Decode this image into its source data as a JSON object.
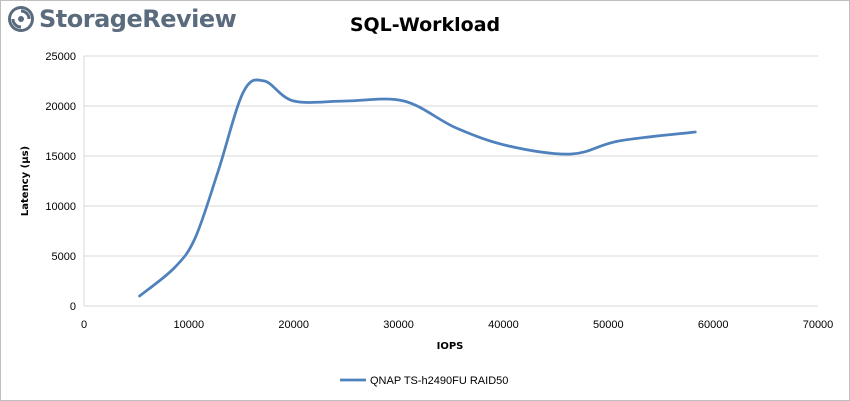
{
  "brand": {
    "name": "StorageReview",
    "logo_icon": "storagereview-logo-icon",
    "logo_color": "#5b6b7e"
  },
  "chart_data": {
    "type": "line",
    "title": "SQL-Workload",
    "xlabel": "IOPS",
    "ylabel": "Latency (µs)",
    "xlim": [
      0,
      70000
    ],
    "ylim": [
      0,
      25000
    ],
    "xticks": [
      0,
      10000,
      20000,
      30000,
      40000,
      50000,
      60000,
      70000
    ],
    "yticks": [
      0,
      5000,
      10000,
      15000,
      20000,
      25000
    ],
    "grid": true,
    "legend_position": "bottom",
    "series": [
      {
        "name": "QNAP TS-h2490FU RAID50",
        "color": "#4f81bd",
        "x": [
          5300,
          8600,
          10600,
          12800,
          15200,
          17200,
          20000,
          25000,
          30500,
          35500,
          40500,
          46500,
          51000,
          58300
        ],
        "y": [
          1000,
          3800,
          6800,
          13500,
          21400,
          22500,
          20500,
          20500,
          20500,
          17800,
          16000,
          15200,
          16500,
          17400
        ]
      }
    ]
  }
}
